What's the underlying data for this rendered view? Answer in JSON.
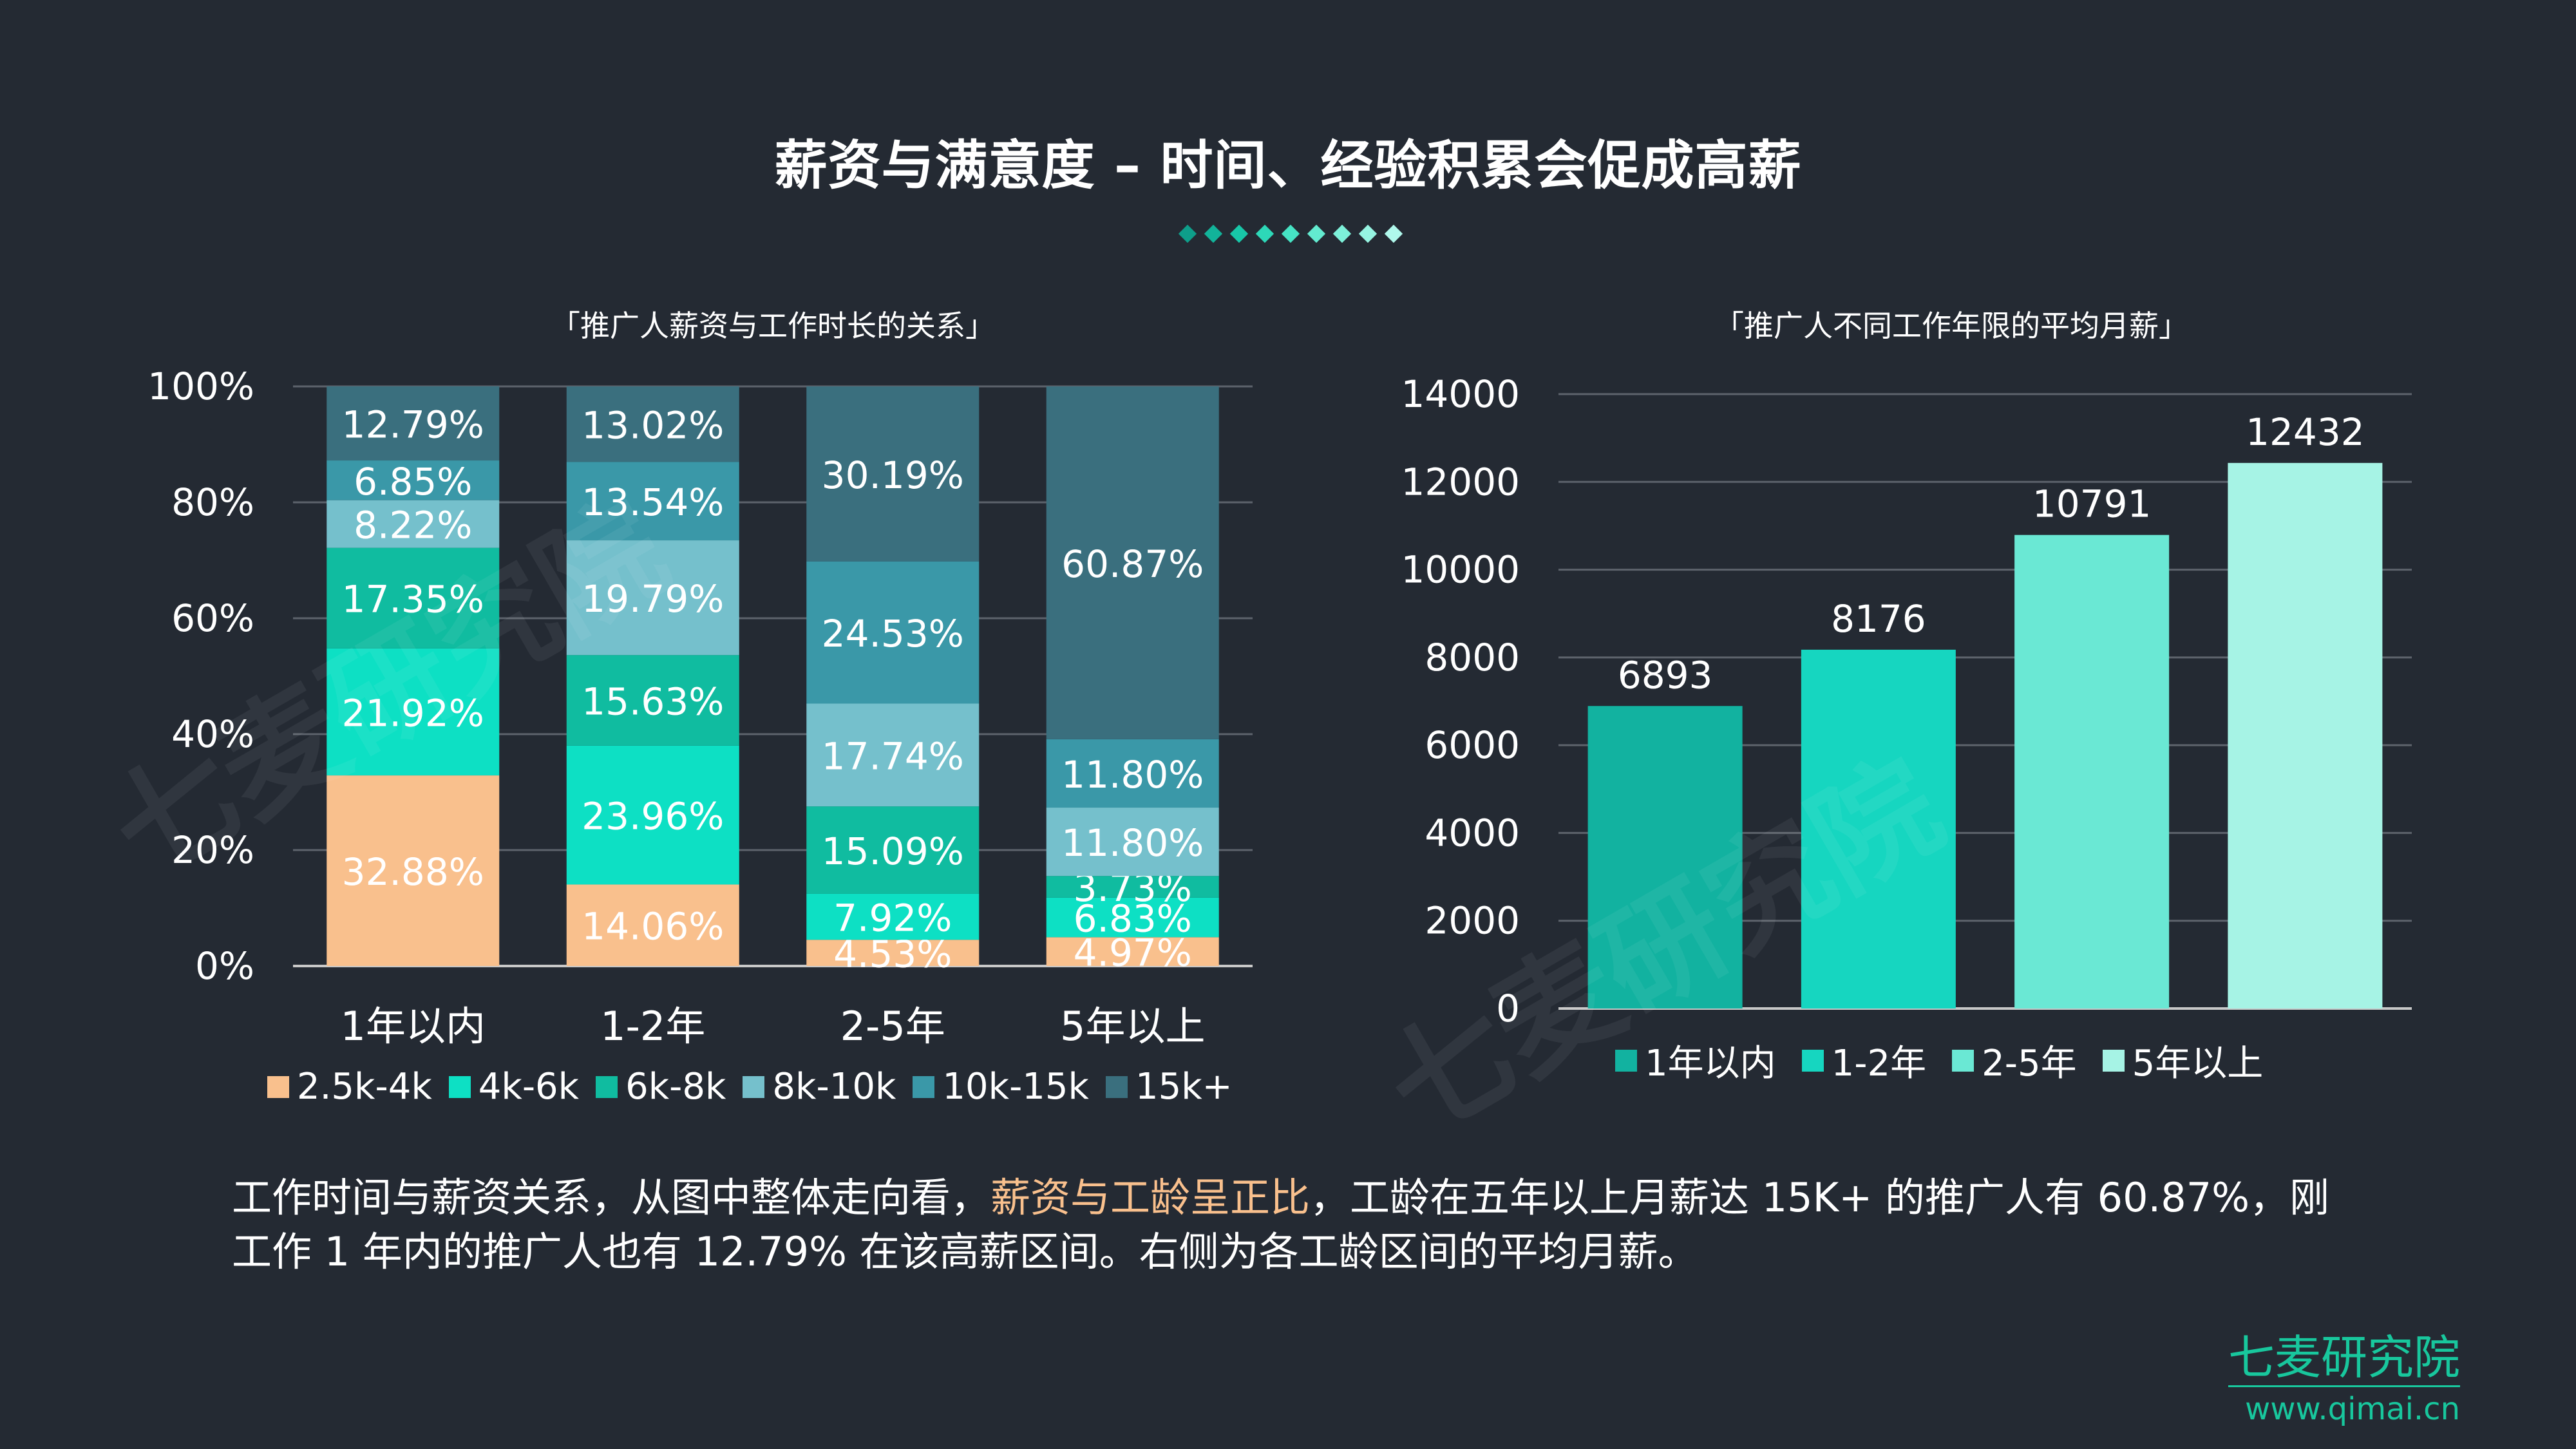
{
  "title": "薪资与满意度 – 时间、经验积累会促成高薪",
  "accent_colors": [
    "#0e9e8a",
    "#12b39a",
    "#18c7a8",
    "#2dd8b8",
    "#46e3c4",
    "#63ebd0",
    "#7df0d9",
    "#96f4e2",
    "#b0f8ec"
  ],
  "watermark_text": "七麦研究院",
  "chart_data": [
    {
      "type": "bar",
      "stacked": true,
      "title": "「推广人薪资与工作时长的关系」",
      "categories": [
        "1年以内",
        "1-2年",
        "2-5年",
        "5年以上"
      ],
      "y_ticks": [
        "0%",
        "20%",
        "40%",
        "60%",
        "80%",
        "100%"
      ],
      "ylim": [
        0,
        100
      ],
      "series": [
        {
          "name": "2.5k-4k",
          "color": "#f9c08d",
          "values": [
            32.88,
            14.06,
            4.53,
            4.97
          ],
          "labels": [
            "32.88%",
            "14.06%",
            "4.53%",
            "4.97%"
          ]
        },
        {
          "name": "4k-6k",
          "color": "#0de0c4",
          "values": [
            21.92,
            23.96,
            7.92,
            6.83
          ],
          "labels": [
            "21.92%",
            "23.96%",
            "7.92%",
            "6.83%"
          ]
        },
        {
          "name": "6k-8k",
          "color": "#10bca0",
          "values": [
            17.35,
            15.63,
            15.09,
            3.73
          ],
          "labels": [
            "17.35%",
            "15.63%",
            "15.09%",
            "3.73%"
          ]
        },
        {
          "name": "8k-10k",
          "color": "#75c0cc",
          "values": [
            8.22,
            19.79,
            17.74,
            11.8
          ],
          "labels": [
            "8.22%",
            "19.79%",
            "17.74%",
            "11.80%"
          ]
        },
        {
          "name": "10k-15k",
          "color": "#3a98a8",
          "values": [
            6.85,
            13.54,
            24.53,
            11.8
          ],
          "labels": [
            "6.85%",
            "13.54%",
            "24.53%",
            "11.80%"
          ]
        },
        {
          "name": "15k+",
          "color": "#3a6f7e",
          "values": [
            12.79,
            13.02,
            30.19,
            60.87
          ],
          "labels": [
            "12.79%",
            "13.02%",
            "30.19%",
            "60.87%"
          ]
        }
      ]
    },
    {
      "type": "bar",
      "title": "「推广人不同工作年限的平均月薪」",
      "categories": [
        "1年以内",
        "1-2年",
        "2-5年",
        "5年以上"
      ],
      "values": [
        6893,
        8176,
        10791,
        12432
      ],
      "labels": [
        "6893",
        "8176",
        "10791",
        "12432"
      ],
      "colors": [
        "#12b2a0",
        "#16d6c0",
        "#6ae8d4",
        "#a6f3e5"
      ],
      "y_ticks": [
        "0",
        "2000",
        "4000",
        "6000",
        "8000",
        "10000",
        "12000",
        "14000"
      ],
      "ylim": [
        0,
        14000
      ],
      "legend": [
        "1年以内",
        "1-2年",
        "2-5年",
        "5年以上"
      ]
    }
  ],
  "footnote": {
    "part1": "工作时间与薪资关系，从图中整体走向看，",
    "highlight": "薪资与工龄呈正比",
    "part2": "，工龄在五年以上月薪达 15K+ 的推广人有 60.87%，刚工作 1 年内的推广人也有 12.79% 在该高薪区间。右侧为各工龄区间的平均月薪。"
  },
  "brand": {
    "name": "七麦研究院",
    "url": "www.qimai.cn"
  }
}
